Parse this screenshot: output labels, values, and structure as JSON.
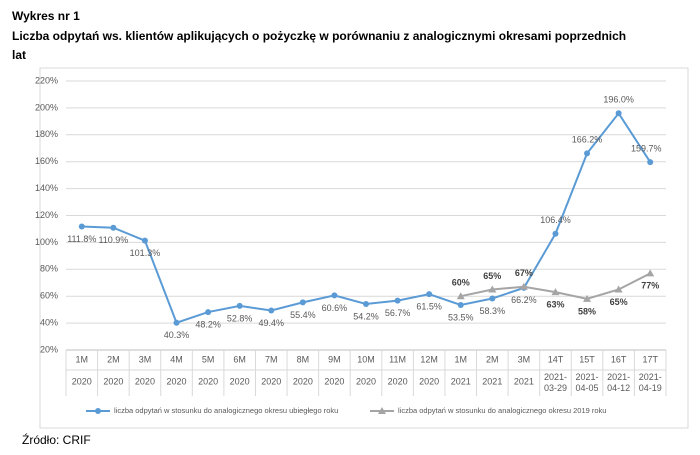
{
  "chart_data": {
    "type": "line",
    "title": "Wykres nr 1",
    "subtitle": "Liczba odpytań ws. klientów aplikujących o pożyczkę w porównaniu z analogicznymi okresami poprzednich lat",
    "source": "Źródło: CRIF",
    "categories": [
      "1M",
      "2M",
      "3M",
      "4M",
      "5M",
      "6M",
      "7M",
      "8M",
      "9M",
      "10M",
      "11M",
      "12M",
      "1M",
      "2M",
      "3M",
      "14T",
      "15T",
      "16T",
      "17T"
    ],
    "category_sublabels": [
      "2020",
      "2020",
      "2020",
      "2020",
      "2020",
      "2020",
      "2020",
      "2020",
      "2020",
      "2020",
      "2020",
      "2020",
      "2021",
      "2021",
      "2021",
      "2021-03-29",
      "2021-04-05",
      "2021-04-12",
      "2021-04-19"
    ],
    "series": [
      {
        "name": "liczba odpytań w stosunku do analogicznego okresu ubiegłego roku",
        "color": "#5b9bd5",
        "marker": "circle",
        "values": [
          111.8,
          110.9,
          101.3,
          40.3,
          48.2,
          52.8,
          49.4,
          55.4,
          60.6,
          54.2,
          56.7,
          61.5,
          53.5,
          58.3,
          66.2,
          106.4,
          166.2,
          196.0,
          159.7
        ],
        "value_labels": [
          "111.8%",
          "110.9%",
          "101.3%",
          "40.3%",
          "48.2%",
          "52.8%",
          "49.4%",
          "55.4%",
          "60.6%",
          "54.2%",
          "56.7%",
          "61.5%",
          "53.5%",
          "58.3%",
          "66.2%",
          "106.4%",
          "166.2%",
          "196.0%",
          "159.7%"
        ]
      },
      {
        "name": "liczba odpytań w stosunku do analogicznego okresu 2019 roku",
        "color": "#a5a5a5",
        "marker": "triangle",
        "values": [
          null,
          null,
          null,
          null,
          null,
          null,
          null,
          null,
          null,
          null,
          null,
          null,
          60,
          65,
          67,
          63,
          58,
          65,
          77
        ],
        "value_labels": [
          null,
          null,
          null,
          null,
          null,
          null,
          null,
          null,
          null,
          null,
          null,
          null,
          "60%",
          "65%",
          "67%",
          "63%",
          "58%",
          "65%",
          "77%"
        ]
      }
    ],
    "ylim": [
      20,
      220
    ],
    "yticks": [
      {
        "value": 20,
        "label": "20%"
      },
      {
        "value": 40,
        "label": "40%"
      },
      {
        "value": 60,
        "label": "60%"
      },
      {
        "value": 80,
        "label": "80%"
      },
      {
        "value": 100,
        "label": "100%"
      },
      {
        "value": 120,
        "label": "120%"
      },
      {
        "value": 140,
        "label": "140%"
      },
      {
        "value": 160,
        "label": "160%"
      },
      {
        "value": 180,
        "label": "180%"
      },
      {
        "value": 200,
        "label": "200%"
      },
      {
        "value": 220,
        "label": "220%"
      }
    ],
    "grid": true
  }
}
